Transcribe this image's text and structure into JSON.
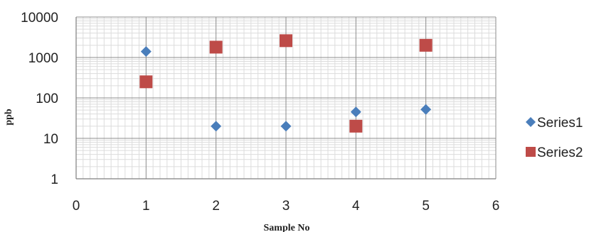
{
  "chart_data": {
    "type": "scatter",
    "title": "",
    "xlabel": "Sample No",
    "ylabel": "ppb",
    "xlim": [
      0,
      6
    ],
    "ylim": [
      1,
      10000
    ],
    "yscale": "log",
    "x_ticks": [
      "0",
      "1",
      "2",
      "3",
      "4",
      "5",
      "6"
    ],
    "y_ticks": [
      "1",
      "10",
      "100",
      "1000",
      "10000"
    ],
    "grid": true,
    "legend_position": "right",
    "series": [
      {
        "name": "Series1",
        "marker": "diamond",
        "color": "#4a7ebb",
        "x": [
          1,
          2,
          3,
          4,
          5
        ],
        "y": [
          1400,
          20,
          20,
          45,
          52
        ]
      },
      {
        "name": "Series2",
        "marker": "square",
        "color": "#be4b48",
        "x": [
          1,
          2,
          3,
          4,
          5
        ],
        "y": [
          250,
          1800,
          2600,
          20,
          2000
        ]
      }
    ]
  }
}
